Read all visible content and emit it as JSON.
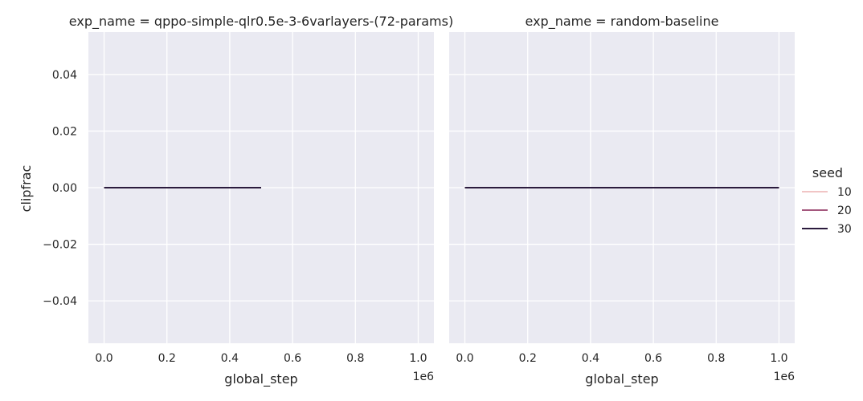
{
  "chart_data": {
    "type": "line",
    "ylabel": "clipfrac",
    "ylim": [
      -0.055,
      0.055
    ],
    "y_ticks": [
      -0.04,
      -0.02,
      0.0,
      0.02,
      0.04
    ],
    "y_tick_labels": [
      "−0.04",
      "−0.02",
      "0.00",
      "0.02",
      "0.04"
    ],
    "x_ticks": [
      0,
      200000,
      400000,
      600000,
      800000,
      1000000
    ],
    "x_tick_labels": [
      "0.0",
      "0.2",
      "0.4",
      "0.6",
      "0.8",
      "1.0"
    ],
    "x_offset_label": "1e6",
    "grid": true,
    "background": "#eaeaf2",
    "legend": {
      "title": "seed",
      "placement": "right",
      "entries": [
        {
          "label": "10",
          "color": "#f1c5c5"
        },
        {
          "label": "20",
          "color": "#a4577d"
        },
        {
          "label": "30",
          "color": "#2b1b3d"
        }
      ]
    },
    "panels": [
      {
        "title": "exp_name = qppo-simple-qlr0.5e-3-6varlayers-(72-params)",
        "xlabel": "global_step",
        "xlim": [
          -50000,
          1050000
        ],
        "series": [
          {
            "name": "10",
            "x": [
              0,
              500000
            ],
            "y": [
              0.0,
              0.0
            ]
          },
          {
            "name": "20",
            "x": [
              0,
              500000
            ],
            "y": [
              0.0,
              0.0
            ]
          },
          {
            "name": "30",
            "x": [
              0,
              500000
            ],
            "y": [
              0.0,
              0.0
            ]
          }
        ]
      },
      {
        "title": "exp_name = random-baseline",
        "xlabel": "global_step",
        "xlim": [
          -50000,
          1050000
        ],
        "series": [
          {
            "name": "10",
            "x": [
              0,
              1000000
            ],
            "y": [
              0.0,
              0.0
            ]
          },
          {
            "name": "20",
            "x": [
              0,
              1000000
            ],
            "y": [
              0.0,
              0.0
            ]
          },
          {
            "name": "30",
            "x": [
              0,
              1000000
            ],
            "y": [
              0.0,
              0.0
            ]
          }
        ]
      }
    ]
  }
}
